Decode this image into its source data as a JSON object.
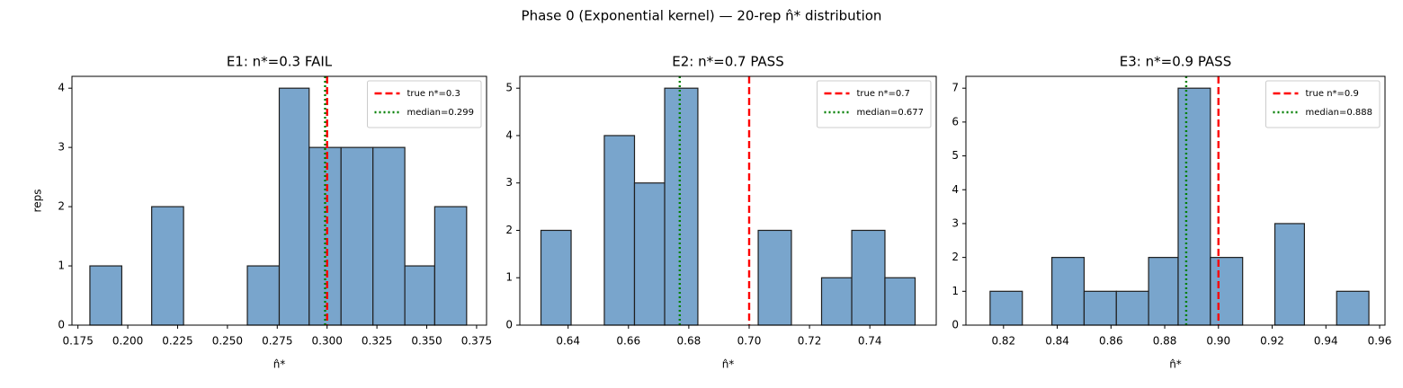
{
  "title": "Phase 0 (Exponential kernel) — 20-rep n̂* distribution",
  "chart_data": [
    {
      "type": "histogram",
      "title": "E1: n*=0.3  FAIL",
      "xlabel": "n̂*",
      "ylabel": "reps",
      "bins": [
        0.181,
        0.197,
        0.212,
        0.228,
        0.244,
        0.26,
        0.276,
        0.291,
        0.307,
        0.323,
        0.339,
        0.354,
        0.37
      ],
      "counts": [
        1,
        0,
        2,
        0,
        0,
        1,
        4,
        3,
        3,
        3,
        1,
        2
      ],
      "color": "#79a5cc",
      "edgecolor": "#1f1f1f",
      "xlim": [
        0.172,
        0.38
      ],
      "ylim": [
        0,
        4.2
      ],
      "xticks": [
        0.175,
        {
          "value": 0.2,
          "label": "0.200"
        },
        0.225,
        {
          "value": 0.25,
          "label": "0.250"
        },
        0.275,
        {
          "value": 0.3,
          "label": "0.300"
        },
        0.325,
        {
          "value": 0.35,
          "label": "0.350"
        },
        0.375
      ],
      "yticks": [
        0,
        1,
        2,
        3,
        4
      ],
      "vlines": [
        {
          "x": 0.3,
          "label": "true n*=0.3",
          "color": "#ff0000",
          "style": "dashed"
        },
        {
          "x": 0.299,
          "label": "median=0.299",
          "color": "#008000",
          "style": "dotted"
        }
      ],
      "legend": "upper right"
    },
    {
      "type": "histogram",
      "title": "E2: n*=0.7  PASS",
      "xlabel": "n̂*",
      "bins": [
        0.631,
        0.641,
        0.652,
        0.662,
        0.672,
        0.683,
        0.693,
        0.703,
        0.714,
        0.724,
        0.734,
        0.745,
        0.755
      ],
      "counts": [
        2,
        0,
        4,
        3,
        5,
        0,
        0,
        2,
        0,
        1,
        2,
        1
      ],
      "color": "#79a5cc",
      "edgecolor": "#1f1f1f",
      "xlim": [
        0.624,
        0.762
      ],
      "ylim": [
        0,
        5.25
      ],
      "xticks": [
        0.64,
        0.66,
        0.68,
        {
          "value": 0.7,
          "label": "0.70"
        },
        0.72,
        0.74
      ],
      "yticks": [
        0,
        1,
        2,
        3,
        4,
        5
      ],
      "vlines": [
        {
          "x": 0.7,
          "label": "true n*=0.7",
          "color": "#ff0000",
          "style": "dashed"
        },
        {
          "x": 0.677,
          "label": "median=0.677",
          "color": "#008000",
          "style": "dotted"
        }
      ],
      "legend": "upper right"
    },
    {
      "type": "histogram",
      "title": "E3: n*=0.9  PASS",
      "xlabel": "n̂*",
      "bins": [
        0.815,
        0.827,
        0.838,
        0.85,
        0.862,
        0.874,
        0.885,
        0.897,
        0.909,
        0.921,
        0.932,
        0.944,
        0.956
      ],
      "counts": [
        1,
        0,
        2,
        1,
        1,
        2,
        7,
        2,
        0,
        3,
        0,
        1
      ],
      "color": "#79a5cc",
      "edgecolor": "#1f1f1f",
      "xlim": [
        0.806,
        0.962
      ],
      "ylim": [
        0,
        7.35
      ],
      "xticks": [
        0.82,
        0.84,
        0.86,
        0.88,
        {
          "value": 0.9,
          "label": "0.90"
        },
        0.92,
        0.94,
        0.96
      ],
      "yticks": [
        0,
        1,
        2,
        3,
        4,
        5,
        6,
        7
      ],
      "vlines": [
        {
          "x": 0.9,
          "label": "true n*=0.9",
          "color": "#ff0000",
          "style": "dashed"
        },
        {
          "x": 0.888,
          "label": "median=0.888",
          "color": "#008000",
          "style": "dotted"
        }
      ],
      "legend": "upper right"
    }
  ]
}
